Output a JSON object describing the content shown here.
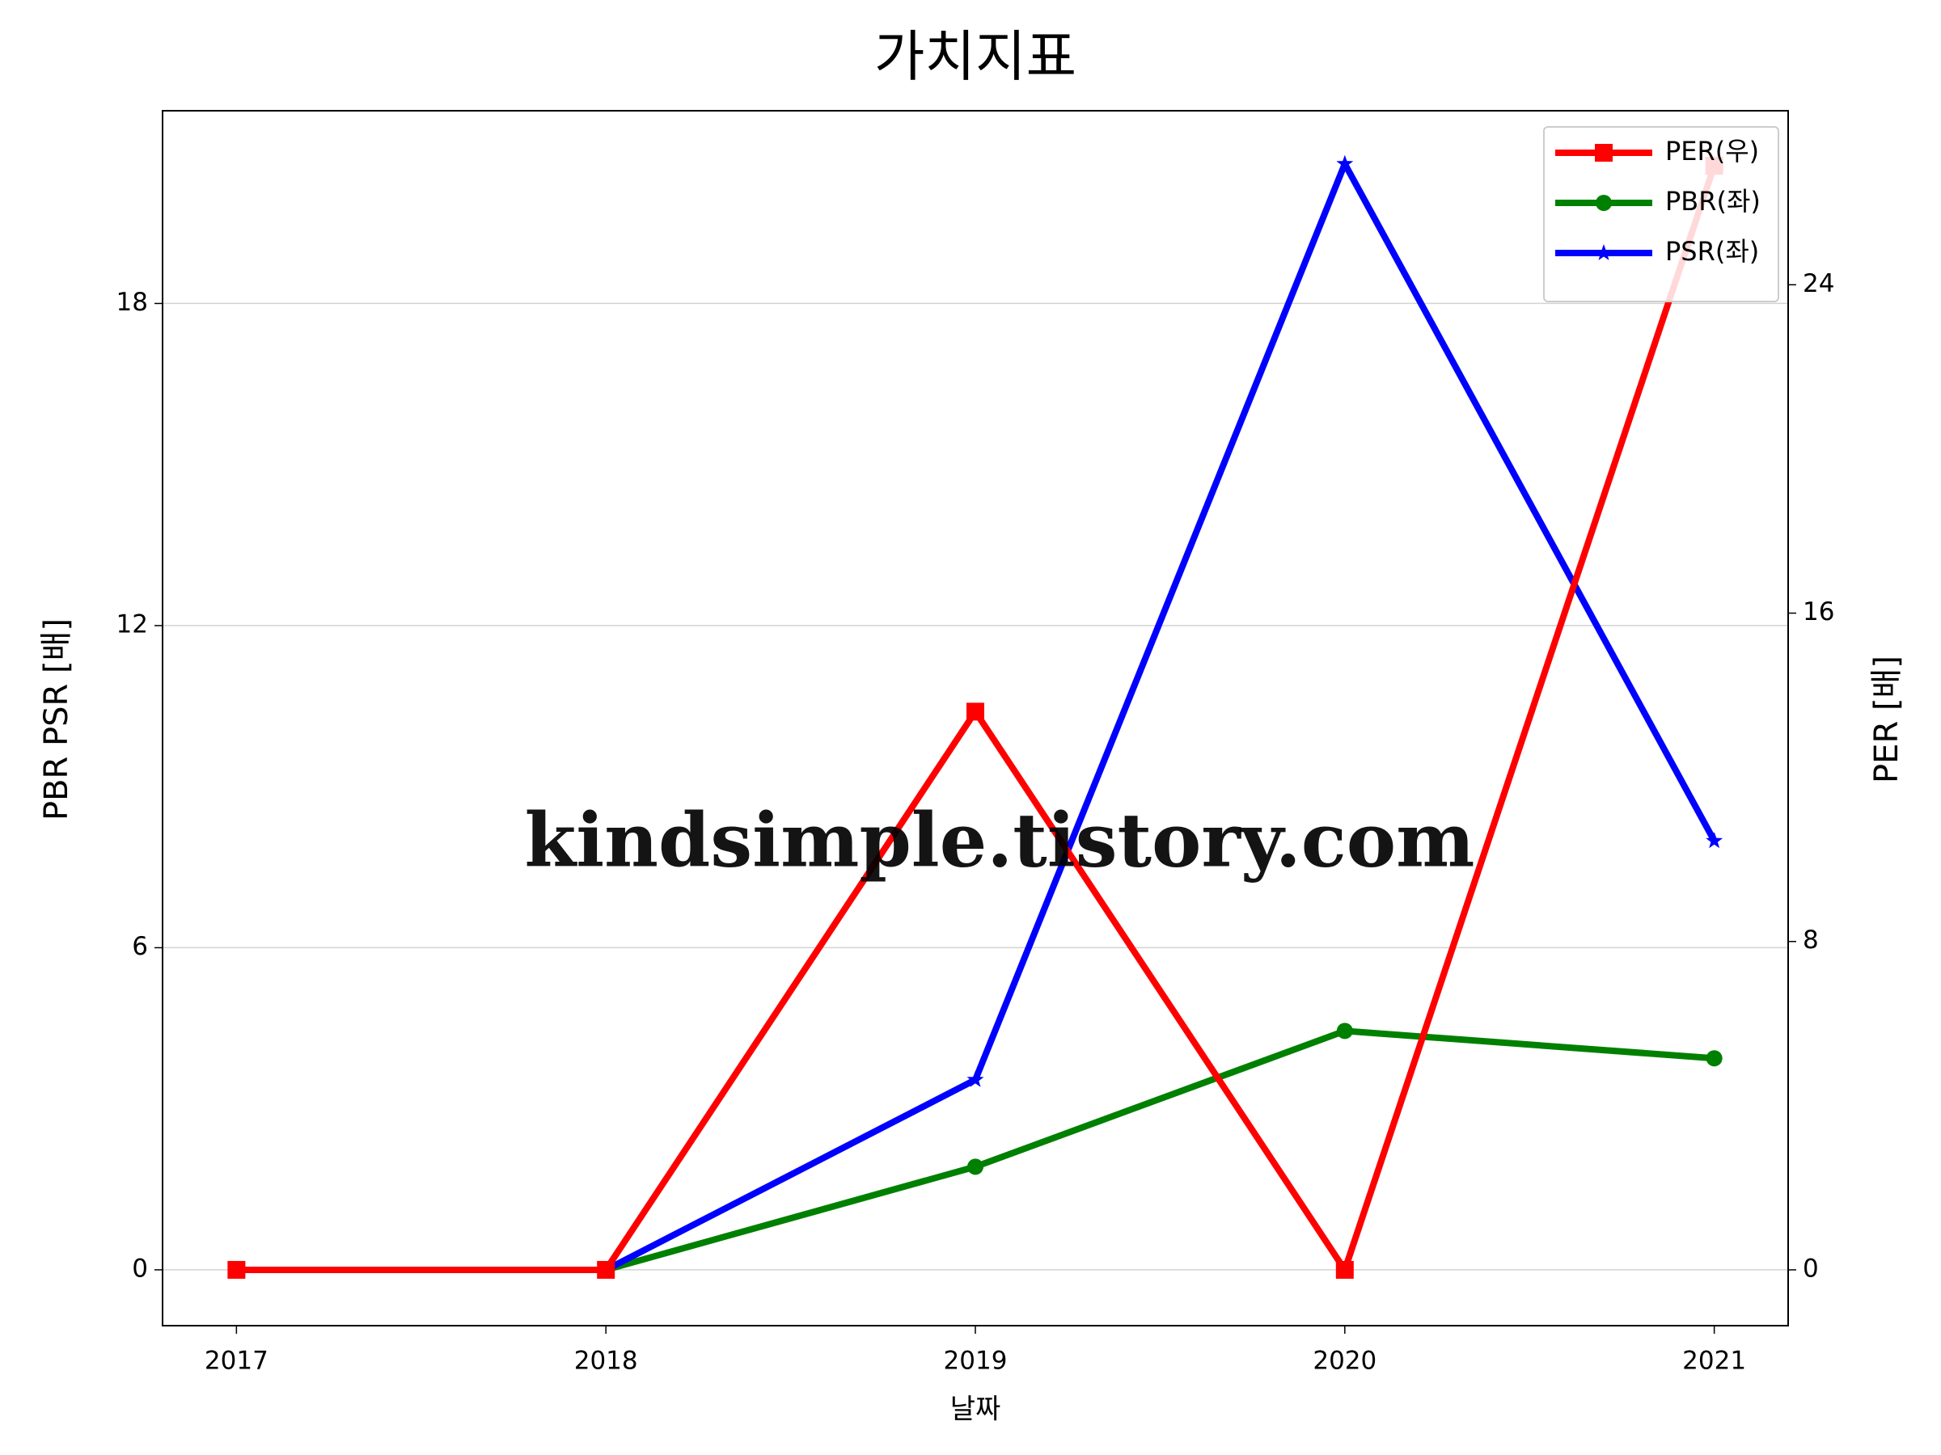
{
  "chart_data": {
    "type": "line",
    "title": "가치지표",
    "xlabel": "날짜",
    "ylabel": "PBR PSR [배]",
    "y2label": "PER [배]",
    "x": [
      2017,
      2018,
      2019,
      2020,
      2021
    ],
    "xlim": [
      2016.8,
      2021.2
    ],
    "xticks": [
      2017,
      2018,
      2019,
      2020,
      2021
    ],
    "ylim": [
      -1.04,
      21.59
    ],
    "yticks": [
      0,
      6,
      12,
      18
    ],
    "y2lim": [
      -1.36,
      28.24
    ],
    "y2ticks": [
      0,
      8,
      16,
      24
    ],
    "grid": true,
    "legend": "upper right",
    "ylabel_color": "#008000",
    "y2label_color": "#ff0000",
    "watermark": "kindsimple.tistory.com",
    "series": [
      {
        "name": "PER(우)",
        "color": "#ff0000",
        "marker": "square",
        "axis": "y2",
        "values": [
          0,
          0,
          13.6,
          0,
          26.9
        ]
      },
      {
        "name": "PBR(좌)",
        "color": "#008000",
        "marker": "circle",
        "values": [
          null,
          0,
          1.92,
          4.45,
          3.94
        ]
      },
      {
        "name": "PSR(좌)",
        "color": "#0000ff",
        "marker": "star",
        "values": [
          null,
          0,
          3.54,
          20.6,
          7.99
        ]
      }
    ]
  }
}
